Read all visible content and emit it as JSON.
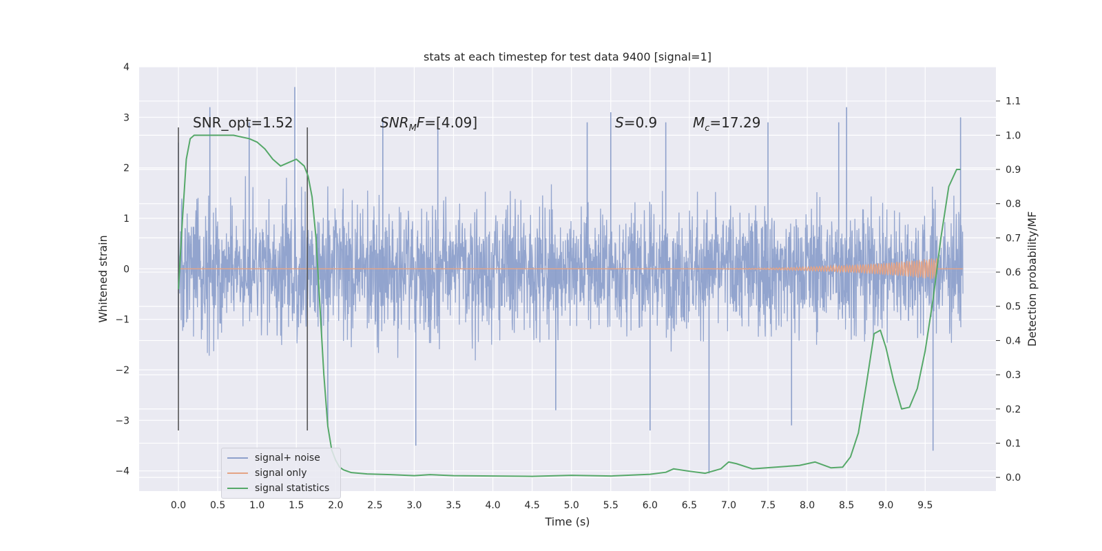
{
  "chart_data": {
    "type": "line",
    "title": "stats at each timestep for test data 9400 [signal=1]",
    "xlabel": "Time (s)",
    "ylabel": "Whitened strain",
    "y2label": "Detection probability/MF",
    "xlim": [
      -0.5,
      10.4
    ],
    "ylim": [
      -4.4,
      4.0
    ],
    "y2lim": [
      -0.04,
      1.2
    ],
    "xticks": [
      "0.0",
      "0.5",
      "1.0",
      "1.5",
      "2.0",
      "2.5",
      "3.0",
      "3.5",
      "4.0",
      "4.5",
      "5.0",
      "5.5",
      "6.0",
      "6.5",
      "7.0",
      "7.5",
      "8.0",
      "8.5",
      "9.0",
      "9.5"
    ],
    "yticks": [
      "4",
      "3",
      "2",
      "1",
      "0",
      "−1",
      "−2",
      "−3",
      "−4"
    ],
    "y2ticks": [
      "0.0",
      "0.1",
      "0.2",
      "0.3",
      "0.4",
      "0.5",
      "0.6",
      "0.7",
      "0.8",
      "0.9",
      "1.0",
      "1.1"
    ],
    "grid": true,
    "legend_position": "bottom-left",
    "annotations": {
      "snr_opt": "SNR_opt=1.52",
      "snr_mf_base": "SNR",
      "snr_mf_sub": "M",
      "snr_mf_rest": "F=[4.09]",
      "s_var": "S",
      "s_rest": "=0.9",
      "mc_var": "M",
      "mc_sub": "c",
      "mc_rest": "=17.29"
    },
    "vlines": [
      0.0,
      1.64
    ],
    "series": [
      {
        "name": "signal+ noise",
        "color": "#8da0cb",
        "noise_range": [
          -2.6,
          2.6
        ],
        "spikes": [
          [
            0.0,
            2.5
          ],
          [
            0.0,
            -2.2
          ],
          [
            0.4,
            3.2
          ],
          [
            0.9,
            2.9
          ],
          [
            1.48,
            3.6
          ],
          [
            1.9,
            -3.1
          ],
          [
            2.6,
            3.0
          ],
          [
            3.02,
            -3.5
          ],
          [
            3.3,
            2.9
          ],
          [
            4.8,
            -2.8
          ],
          [
            5.2,
            2.9
          ],
          [
            5.5,
            3.1
          ],
          [
            6.0,
            -3.2
          ],
          [
            6.2,
            2.9
          ],
          [
            6.75,
            -4.05
          ],
          [
            7.5,
            2.9
          ],
          [
            7.8,
            -3.1
          ],
          [
            8.4,
            2.9
          ],
          [
            8.5,
            3.2
          ],
          [
            9.6,
            -3.6
          ],
          [
            9.95,
            3.0
          ]
        ]
      },
      {
        "name": "signal only",
        "color": "#e5a384",
        "chirp_end": 9.65
      },
      {
        "name": "signal statistics",
        "color": "#55a868",
        "axis": "right",
        "x": [
          0.0,
          0.05,
          0.1,
          0.15,
          0.2,
          0.3,
          0.5,
          0.7,
          0.9,
          1.0,
          1.1,
          1.2,
          1.3,
          1.4,
          1.5,
          1.6,
          1.65,
          1.7,
          1.75,
          1.8,
          1.85,
          1.9,
          1.95,
          2.0,
          2.05,
          2.1,
          2.2,
          2.4,
          2.7,
          3.0,
          3.2,
          3.5,
          4.0,
          4.5,
          5.0,
          5.5,
          6.0,
          6.2,
          6.3,
          6.5,
          6.7,
          6.9,
          7.0,
          7.1,
          7.3,
          7.6,
          7.9,
          8.1,
          8.3,
          8.45,
          8.55,
          8.65,
          8.75,
          8.85,
          8.93,
          9.0,
          9.1,
          9.2,
          9.3,
          9.4,
          9.5,
          9.6,
          9.7,
          9.8,
          9.9,
          9.95
        ],
        "y": [
          0.55,
          0.75,
          0.93,
          0.99,
          1.0,
          1.0,
          1.0,
          1.0,
          0.99,
          0.98,
          0.96,
          0.93,
          0.91,
          0.92,
          0.93,
          0.91,
          0.88,
          0.82,
          0.7,
          0.5,
          0.3,
          0.15,
          0.08,
          0.05,
          0.03,
          0.022,
          0.014,
          0.01,
          0.008,
          0.005,
          0.008,
          0.005,
          0.004,
          0.003,
          0.006,
          0.004,
          0.009,
          0.015,
          0.025,
          0.018,
          0.012,
          0.025,
          0.045,
          0.04,
          0.025,
          0.03,
          0.035,
          0.045,
          0.028,
          0.03,
          0.06,
          0.13,
          0.27,
          0.42,
          0.43,
          0.38,
          0.28,
          0.2,
          0.205,
          0.26,
          0.37,
          0.52,
          0.7,
          0.85,
          0.9,
          0.9
        ]
      }
    ]
  }
}
